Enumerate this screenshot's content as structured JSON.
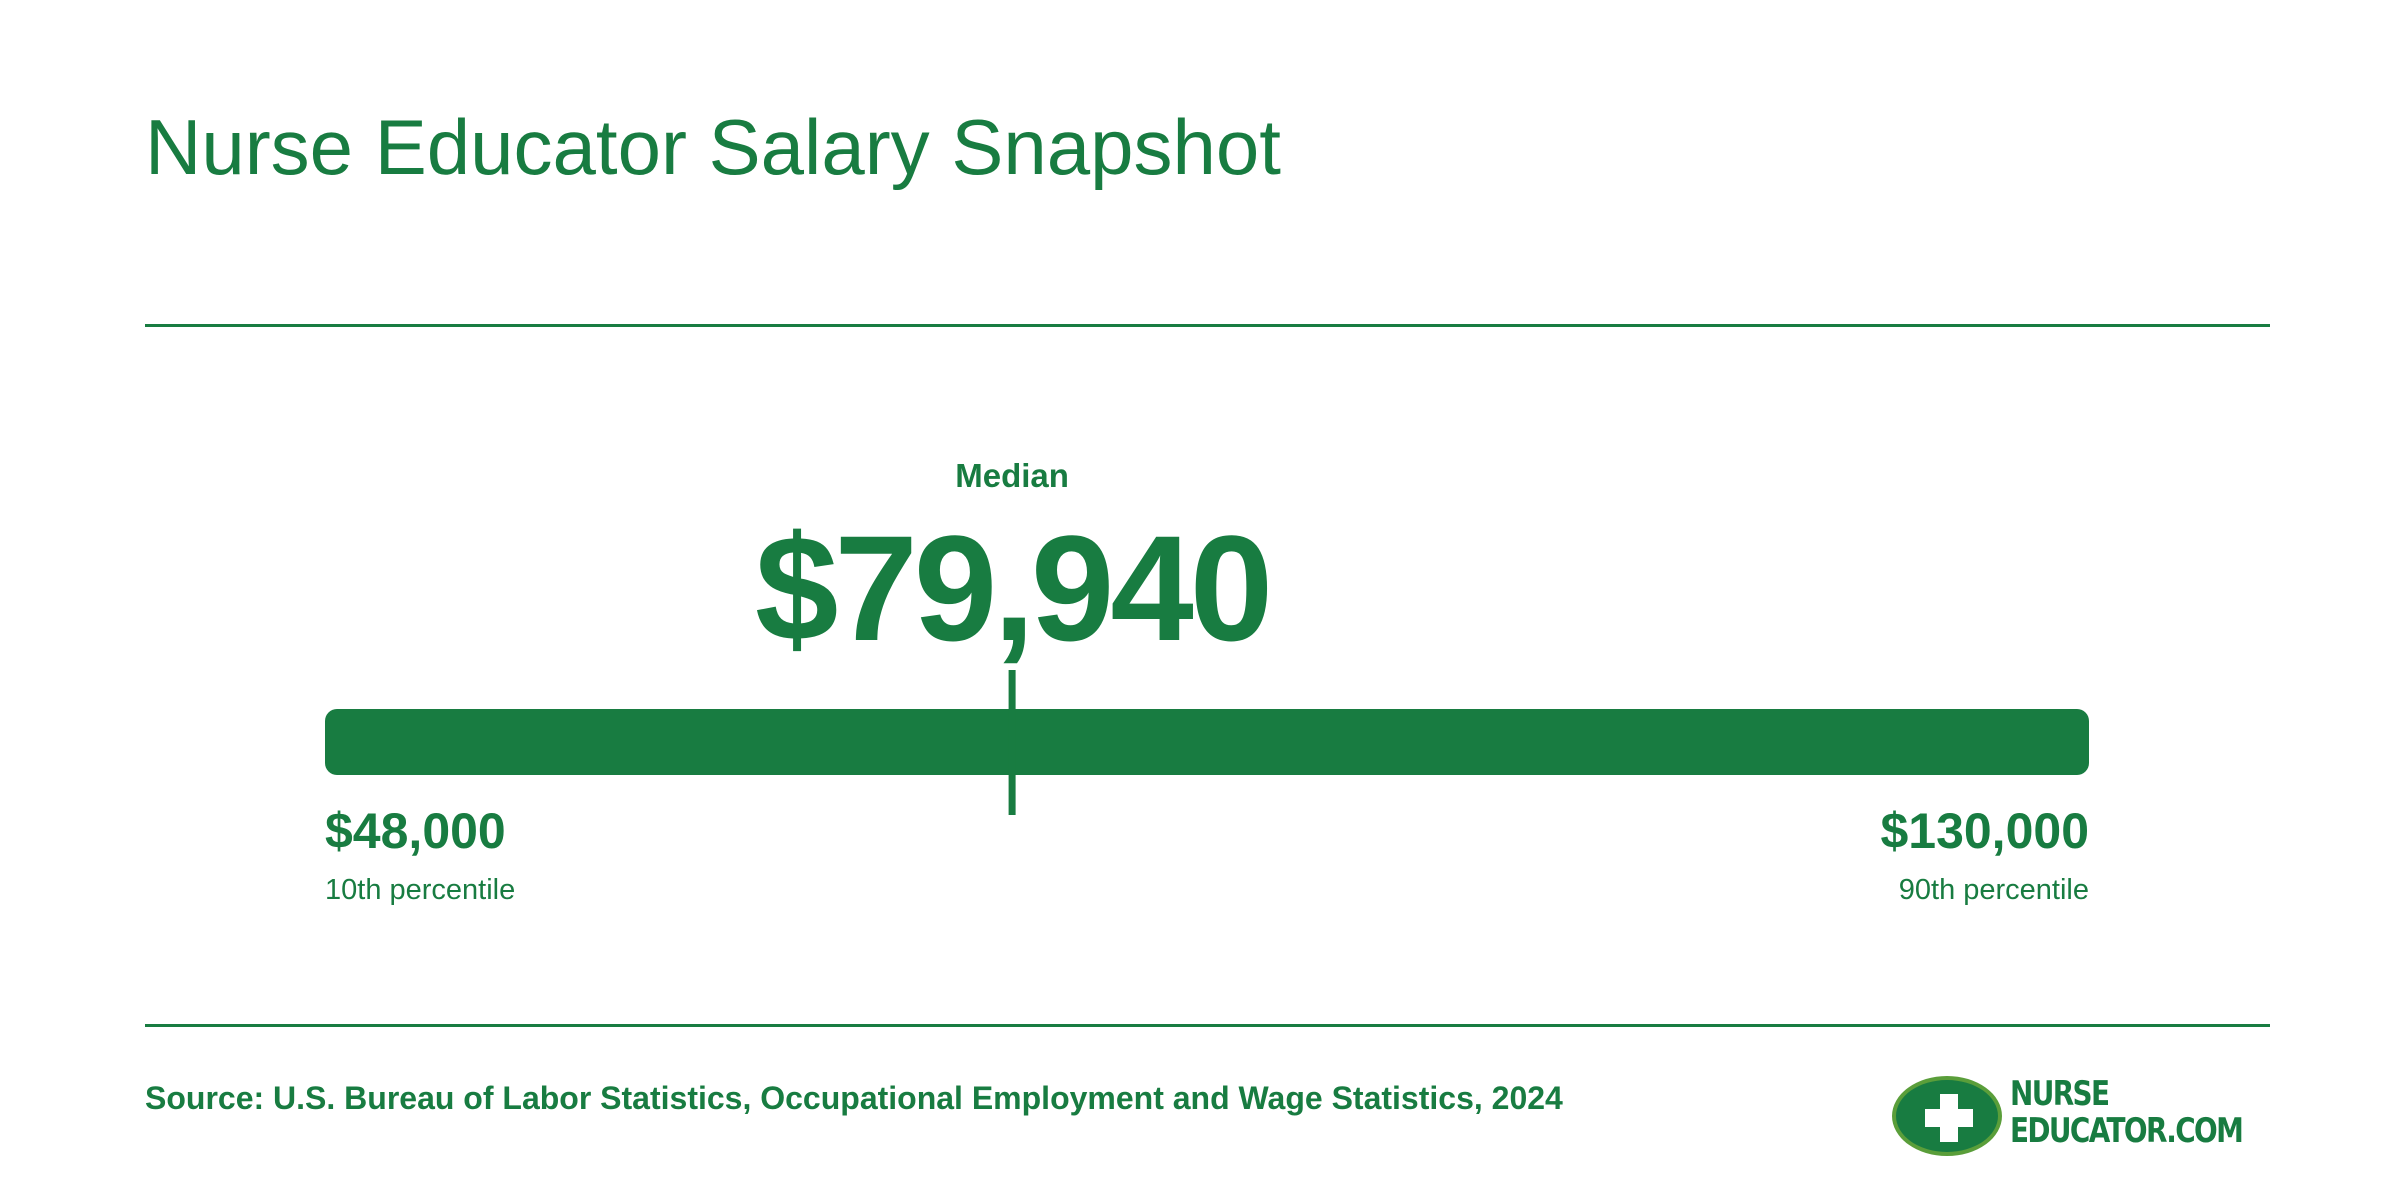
{
  "title": "Nurse Educator Salary Snapshot",
  "source": "Source: U.S. Bureau of Labor Statistics, Occupational Employment and Wage Statistics, 2024",
  "logo": {
    "line1": "NURSE",
    "line2": "EDUCATOR.COM",
    "icon": "medical-cross-icon"
  },
  "colors": {
    "brand": "#187c41",
    "logo_ring": "#5a9e3a",
    "background": "#ffffff"
  },
  "chart_data": {
    "type": "range",
    "title": "Nurse Educator Salary Snapshot",
    "range": [
      48000,
      130000
    ],
    "median": 79940,
    "median_label": "Median",
    "median_display": "$79,940",
    "low": {
      "value": 48000,
      "display": "$48,000",
      "label": "10th percentile"
    },
    "high": {
      "value": 130000,
      "display": "$130,000",
      "label": "90th percentile"
    }
  }
}
